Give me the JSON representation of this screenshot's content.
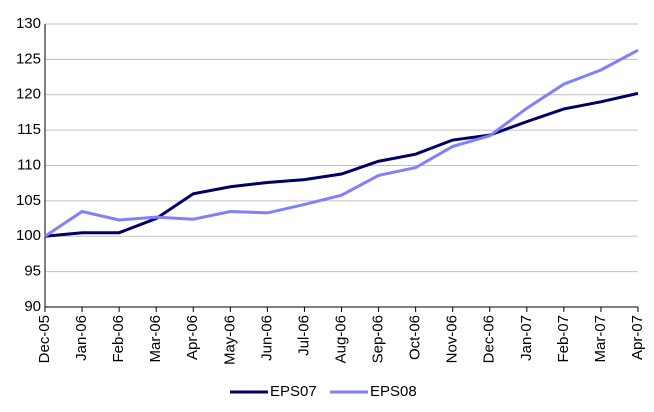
{
  "chart_data": {
    "type": "line",
    "categories": [
      "Dec-05",
      "Jan-06",
      "Feb-06",
      "Mar-06",
      "Apr-06",
      "May-06",
      "Jun-06",
      "Jul-06",
      "Aug-06",
      "Sep-06",
      "Oct-06",
      "Nov-06",
      "Dec-06",
      "Jan-07",
      "Feb-07",
      "Mar-07",
      "Apr-07"
    ],
    "series": [
      {
        "name": "EPS07",
        "color": "#000066",
        "values": [
          100,
          100.5,
          100.5,
          102.5,
          106,
          107,
          107.6,
          108,
          108.8,
          110.6,
          111.6,
          113.6,
          114.3,
          116.2,
          118,
          119,
          120.2
        ]
      },
      {
        "name": "EPS08",
        "color": "#8080ff",
        "values": [
          100,
          103.5,
          102.3,
          102.7,
          102.4,
          103.5,
          103.3,
          104.5,
          105.8,
          108.6,
          109.7,
          112.7,
          114.2,
          118.1,
          121.5,
          123.5,
          126.3
        ]
      }
    ],
    "ylim": [
      90,
      130
    ],
    "yticks": [
      90,
      95,
      100,
      105,
      110,
      115,
      120,
      125,
      130
    ],
    "grid": true,
    "legend": "bottom"
  }
}
